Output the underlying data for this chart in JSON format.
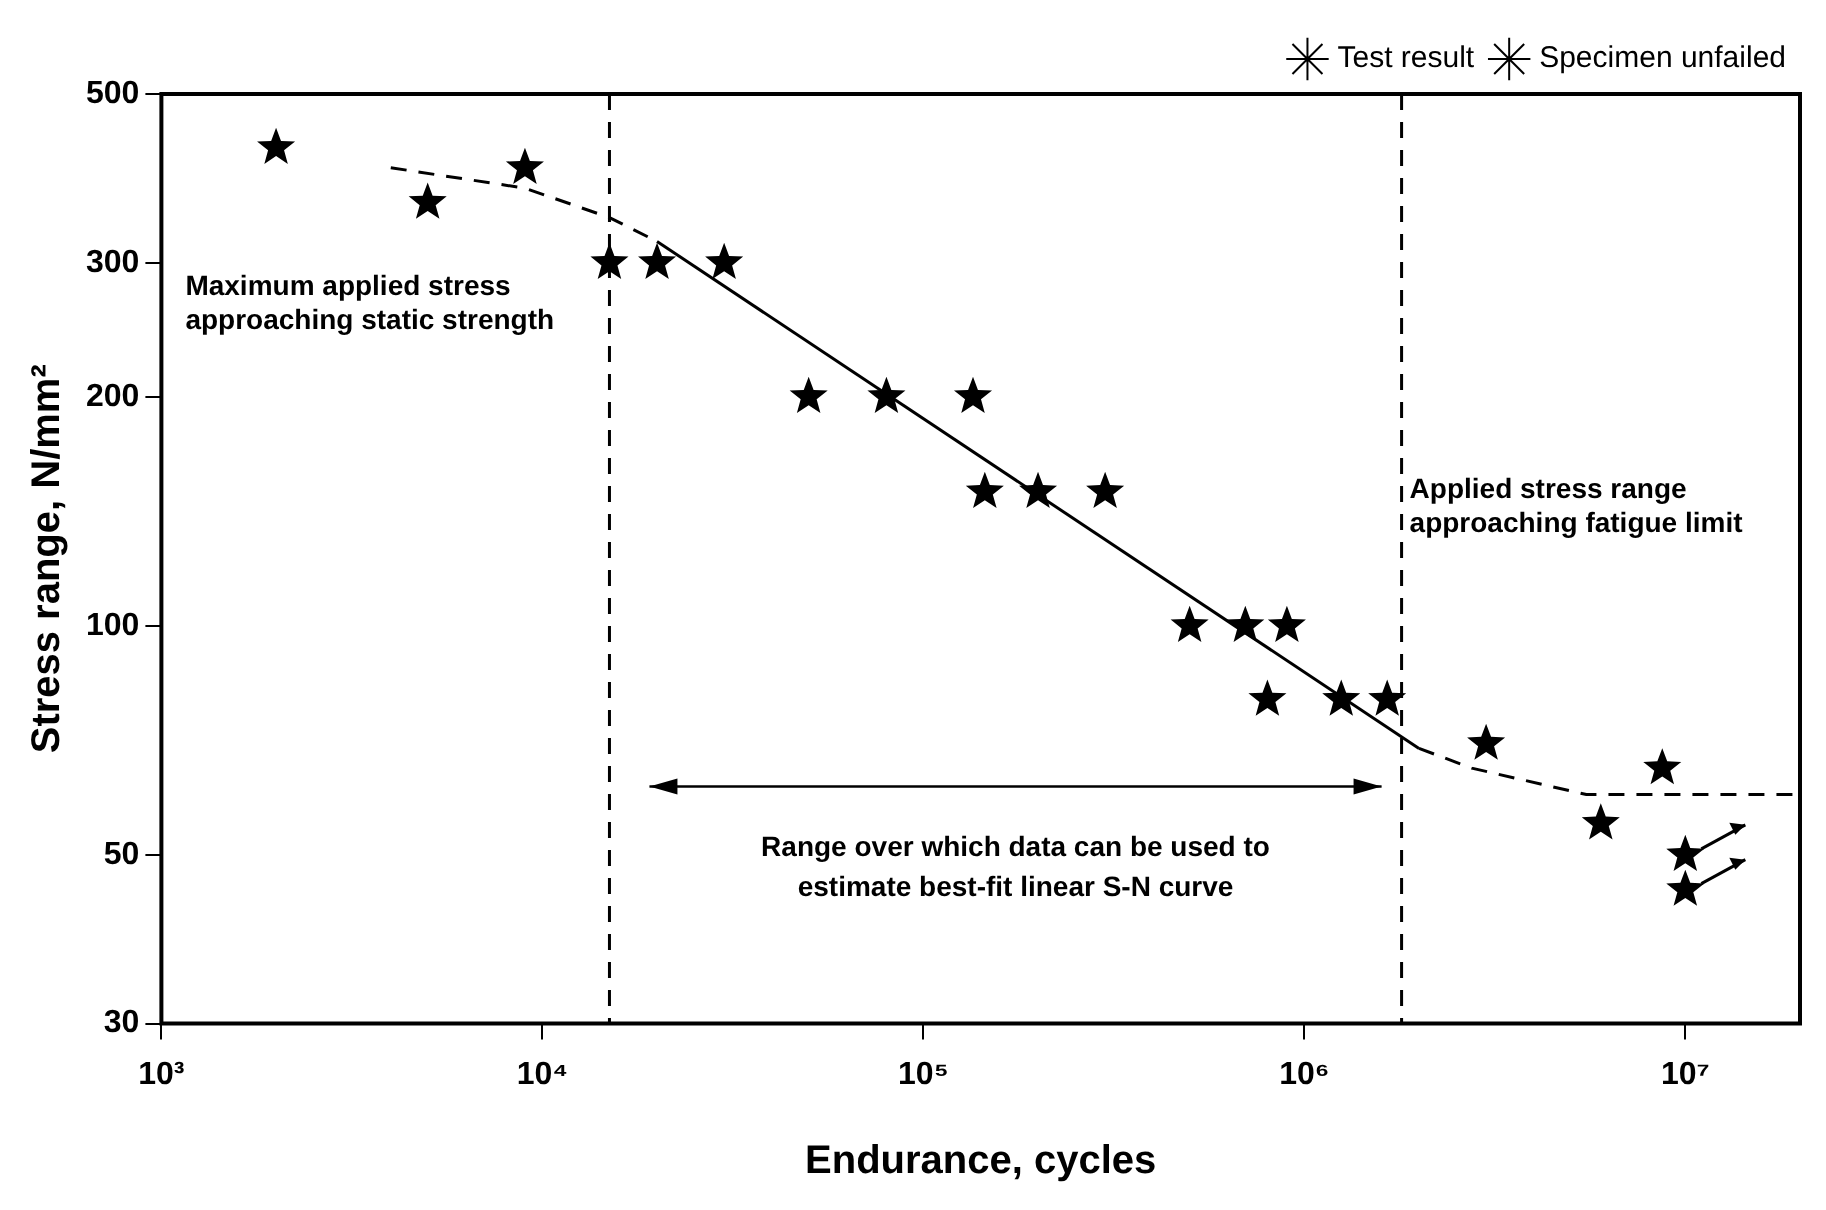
{
  "chart_data": {
    "type": "scatter",
    "xlabel": "Endurance, cycles",
    "ylabel": "Stress range, N/mm²",
    "log": "xy",
    "grid": false,
    "legend": "top right",
    "xlim": [
      1000,
      20000000
    ],
    "xticks": [
      {
        "value": 1000,
        "label": "10³"
      },
      {
        "value": 10000,
        "label": "10⁴"
      },
      {
        "value": 100000,
        "label": "10⁵"
      },
      {
        "value": 1000000,
        "label": "10⁶"
      },
      {
        "value": 10000000,
        "label": "10⁷"
      }
    ],
    "ylim": [
      30,
      500
    ],
    "yticks": [
      30,
      50,
      100,
      200,
      300,
      500
    ],
    "series": [
      {
        "name": "Test result",
        "marker": "star",
        "color": "#000000",
        "x": [
          2000,
          5000,
          9000,
          15000,
          20000,
          30000,
          50000,
          80000,
          135000,
          145000,
          200000,
          300000,
          500000,
          700000,
          900000,
          800000,
          1250000,
          1650000,
          3000000,
          6000000,
          8700000
        ],
        "values": [
          425,
          360,
          400,
          300,
          300,
          300,
          200,
          200,
          200,
          150,
          150,
          150,
          100,
          100,
          100,
          80,
          80,
          80,
          70,
          55,
          65
        ]
      },
      {
        "name": "Specimen unfailed",
        "marker": "star",
        "color": "#000000",
        "x": [
          10000000,
          10000000
        ],
        "values": [
          50,
          45
        ]
      },
      {
        "type": "line",
        "marker": "none",
        "line_style": "dashed",
        "color": "#000000",
        "x": [
          4000,
          9000,
          15000,
          20000
        ],
        "values": [
          400,
          376,
          344,
          320
        ]
      },
      {
        "type": "line",
        "marker": "none",
        "line_style": "solid",
        "color": "#000000",
        "x": [
          20000,
          2000000
        ],
        "values": [
          320,
          69
        ]
      },
      {
        "type": "line",
        "marker": "none",
        "line_style": "dashed",
        "color": "#000000",
        "x": [
          2000000,
          2750000,
          5500000,
          20000000
        ],
        "values": [
          69,
          65,
          60,
          60
        ]
      }
    ],
    "ref_lines": [
      {
        "axis": "x",
        "value": 15000,
        "line_style": "dashed",
        "color": "#000000"
      },
      {
        "axis": "x",
        "value": 1800000,
        "line_style": "dashed",
        "color": "#000000"
      }
    ],
    "annotations": [
      "Maximum applied stress approaching static strength",
      "Applied stress range approaching fatigue limit",
      "Range over which data can be used to estimate best-fit linear S-N curve"
    ]
  }
}
